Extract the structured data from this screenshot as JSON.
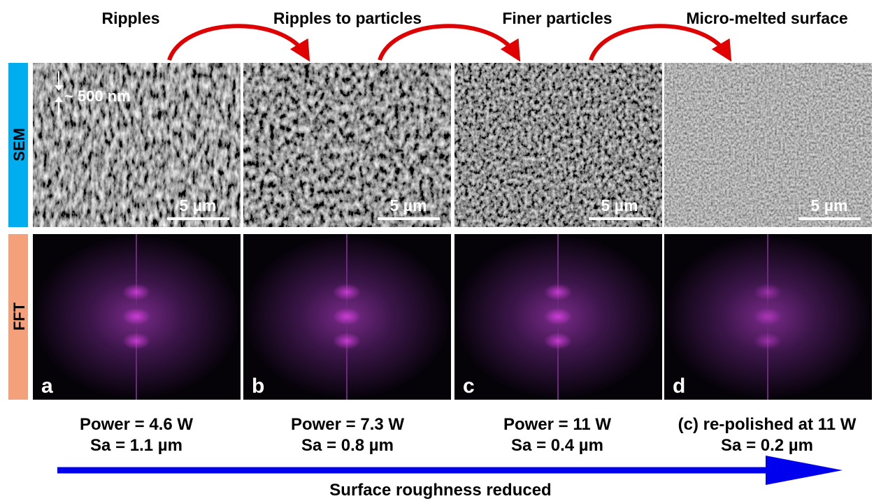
{
  "rows": [
    "SEM",
    "FFT"
  ],
  "annotation": "~ 500 nm",
  "axis_label": "Surface roughness reduced",
  "columns": [
    {
      "title": "Ripples",
      "letter": "a",
      "scale_bar": "5 µm",
      "power": "Power = 4.6 W",
      "roughness": "Sa = 1.1 µm"
    },
    {
      "title": "Ripples to particles",
      "letter": "b",
      "scale_bar": "5 µm",
      "power": "Power = 7.3 W",
      "roughness": "Sa = 0.8 µm"
    },
    {
      "title": "Finer particles",
      "letter": "c",
      "scale_bar": "5 µm",
      "power": "Power = 11 W",
      "roughness": "Sa = 0.4 µm"
    },
    {
      "title": "Micro-melted surface",
      "letter": "d",
      "scale_bar": "5 µm",
      "power": "(c) re-polished at 11 W",
      "roughness": "Sa = 0.2 µm"
    }
  ]
}
